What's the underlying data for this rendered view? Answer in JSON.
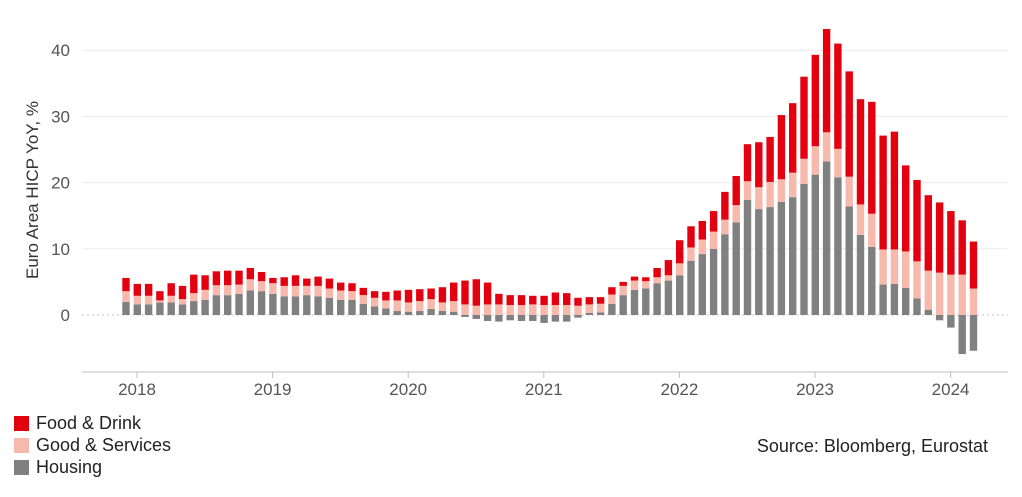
{
  "chart_data": {
    "type": "bar",
    "stacked": true,
    "ylabel": "Euro Area HICP YoY, %",
    "ylim": [
      -8,
      44
    ],
    "yticks": [
      0,
      10,
      20,
      30,
      40
    ],
    "x_tick_labels": [
      "2018",
      "2019",
      "2020",
      "2021",
      "2022",
      "2023",
      "2024"
    ],
    "x_start": "2018-01",
    "grid": "horizontal",
    "legend_position": "bottom-left",
    "series": [
      {
        "name": "Housing",
        "color": "#808080",
        "values": [
          2.0,
          1.6,
          1.6,
          1.9,
          1.9,
          1.6,
          2.1,
          2.3,
          3.0,
          3.0,
          3.2,
          3.7,
          3.6,
          3.2,
          2.8,
          2.8,
          3.0,
          2.8,
          2.6,
          2.3,
          2.3,
          1.7,
          1.3,
          1.0,
          0.6,
          0.5,
          0.6,
          0.9,
          0.6,
          0.5,
          -0.3,
          -0.6,
          -0.9,
          -1.0,
          -0.8,
          -0.9,
          -0.9,
          -1.2,
          -1.0,
          -1.0,
          -0.4,
          0.3,
          0.4,
          1.7,
          3.0,
          3.8,
          4.0,
          4.8,
          5.2,
          6.0,
          8.2,
          9.2,
          10.0,
          12.2,
          14.0,
          17.4,
          16.0,
          16.3,
          17.1,
          17.8,
          19.8,
          21.2,
          23.2,
          20.8,
          16.4,
          12.1,
          10.3,
          4.6,
          4.7,
          4.1,
          2.5,
          0.8,
          -0.8,
          -1.9,
          -5.9,
          -5.4
        ]
      },
      {
        "name": "Good & Services",
        "color": "#F8B9AD",
        "values": [
          1.6,
          1.3,
          1.3,
          0.3,
          1.0,
          0.8,
          1.2,
          1.5,
          1.5,
          1.5,
          1.4,
          1.7,
          1.5,
          1.6,
          1.6,
          1.6,
          1.4,
          1.6,
          1.4,
          1.4,
          1.3,
          1.3,
          1.3,
          1.2,
          1.6,
          1.4,
          1.5,
          1.5,
          1.3,
          1.6,
          1.6,
          1.4,
          1.6,
          1.6,
          1.5,
          1.5,
          1.6,
          1.5,
          1.5,
          1.5,
          1.4,
          1.3,
          1.3,
          1.4,
          1.4,
          1.4,
          1.1,
          0.9,
          0.8,
          1.8,
          2.0,
          2.2,
          2.6,
          2.2,
          2.6,
          2.8,
          3.3,
          3.8,
          3.4,
          3.7,
          3.8,
          4.3,
          4.4,
          4.3,
          4.5,
          4.6,
          5.0,
          5.3,
          5.2,
          5.5,
          5.6,
          5.9,
          6.4,
          6.1,
          6.1,
          4.0
        ]
      },
      {
        "name": "Food & Drink",
        "color": "#E3000F",
        "values": [
          2.0,
          1.8,
          1.8,
          1.4,
          1.9,
          2.0,
          2.8,
          2.2,
          2.1,
          2.2,
          2.1,
          1.7,
          1.4,
          0.8,
          1.3,
          1.6,
          1.1,
          1.4,
          1.5,
          1.2,
          1.2,
          1.1,
          1.0,
          1.3,
          1.5,
          1.9,
          1.8,
          1.6,
          2.3,
          2.8,
          3.6,
          4.0,
          3.3,
          1.6,
          1.5,
          1.5,
          1.3,
          1.4,
          1.9,
          1.8,
          1.2,
          1.1,
          1.0,
          1.1,
          0.6,
          0.6,
          0.6,
          1.4,
          2.3,
          3.5,
          3.2,
          2.8,
          3.1,
          4.2,
          4.4,
          5.6,
          6.8,
          6.8,
          9.7,
          10.5,
          12.4,
          13.8,
          15.6,
          15.9,
          15.9,
          15.9,
          16.9,
          17.2,
          17.8,
          13.0,
          12.3,
          11.4,
          10.6,
          9.6,
          8.2,
          7.1
        ]
      }
    ]
  },
  "legend": [
    {
      "label": "Food & Drink",
      "color": "#E3000F"
    },
    {
      "label": "Good & Services",
      "color": "#F8B9AD"
    },
    {
      "label": "Housing",
      "color": "#808080"
    }
  ],
  "source": "Source: Bloomberg, Eurostat"
}
